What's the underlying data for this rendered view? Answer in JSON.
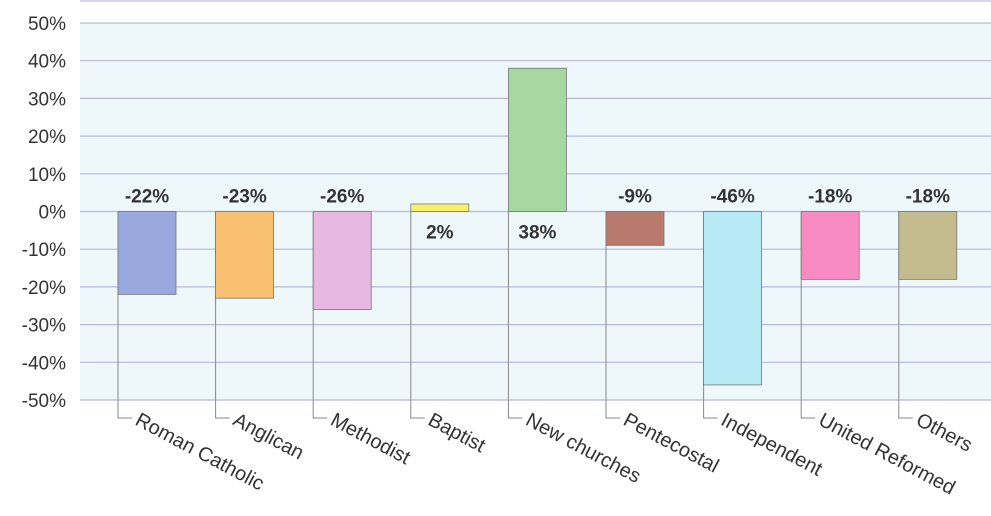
{
  "chart_data": {
    "type": "bar",
    "title": "",
    "xlabel": "",
    "ylabel": "",
    "ylim": [
      -50,
      50
    ],
    "yticks": [
      50,
      40,
      30,
      20,
      10,
      0,
      -10,
      -20,
      -30,
      -40,
      -50
    ],
    "ytick_suffix": "%",
    "grid": true,
    "legend": "none",
    "plot_background": "#eef8fb",
    "gridline_color": "#b9b9d6",
    "categories": [
      "Roman Catholic",
      "Anglican",
      "Methodist",
      "Baptist",
      "New churches",
      "Pentecostal",
      "Independent",
      "United Reformed",
      "Others"
    ],
    "values": [
      -22,
      -23,
      -26,
      2,
      38,
      -9,
      -46,
      -18,
      -18
    ],
    "data_labels": [
      "-22%",
      "-23%",
      "-26%",
      "2%",
      "38%",
      "-9%",
      "-46%",
      "-18%",
      "-18%"
    ],
    "colors": [
      "#9aa8e0",
      "#f8c070",
      "#e6b8e2",
      "#f6f06a",
      "#a6d8a0",
      "#b87a6c",
      "#b8eaf6",
      "#f88cc2",
      "#c4bc8e"
    ]
  }
}
